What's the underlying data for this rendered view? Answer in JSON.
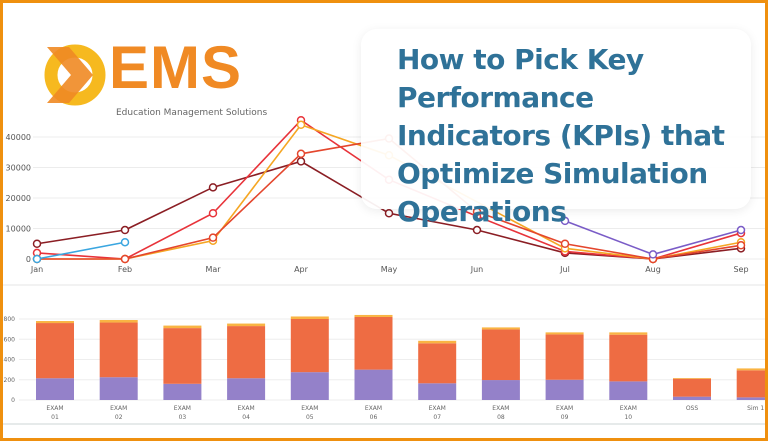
{
  "logo": {
    "name": "EMS",
    "tagline": "Education Management Solutions"
  },
  "title": "How to Pick Key Performance Indicators (KPIs) that Optimize Simulation Operations",
  "colors": {
    "frame": "#ef900f",
    "title": "#2f7298",
    "logo": "#f08a24"
  },
  "chart_data": [
    {
      "type": "line",
      "categories": [
        "Jan",
        "Feb",
        "Mar",
        "Apr",
        "May",
        "Jun",
        "Jul",
        "Aug",
        "Sep"
      ],
      "yticks": [
        0,
        10000,
        20000,
        30000,
        40000
      ],
      "ylim": [
        0,
        45000
      ],
      "grid": true,
      "series": [
        {
          "color": "#8b1e24",
          "values": [
            5000,
            9500,
            23500,
            32000,
            15000,
            9500,
            2000,
            0,
            3500
          ]
        },
        {
          "color": "#e8333a",
          "values": [
            2000,
            0,
            15000,
            45500,
            26000,
            14000,
            2500,
            0,
            8500
          ]
        },
        {
          "color": "#f5a623",
          "values": [
            0,
            0,
            6000,
            44000,
            34000,
            null,
            3500,
            0,
            5500
          ]
        },
        {
          "color": "#e4462d",
          "values": [
            0,
            0,
            7000,
            34500,
            39500,
            15500,
            5000,
            0,
            4500
          ]
        },
        {
          "color": "#3aa6e0",
          "values": [
            0,
            5500,
            null,
            null,
            null,
            null,
            null,
            null,
            null
          ]
        },
        {
          "color": "#7a5cc7",
          "values": [
            null,
            null,
            null,
            null,
            null,
            null,
            12500,
            1500,
            9500
          ]
        }
      ]
    },
    {
      "type": "bar",
      "stacked": true,
      "categories": [
        [
          "EXAM",
          "01"
        ],
        [
          "EXAM",
          "02"
        ],
        [
          "EXAM",
          "03"
        ],
        [
          "EXAM",
          "04"
        ],
        [
          "EXAM",
          "05"
        ],
        [
          "EXAM",
          "06"
        ],
        [
          "EXAM",
          "07"
        ],
        [
          "EXAM",
          "08"
        ],
        [
          "EXAM",
          "09"
        ],
        [
          "EXAM",
          "10"
        ],
        [
          "OSS",
          ""
        ],
        [
          "Sim 1",
          ""
        ]
      ],
      "yticks": [
        0,
        200,
        400,
        600,
        800
      ],
      "ylim": [
        0,
        850
      ],
      "grid": true,
      "series": [
        {
          "color": "#9481c9",
          "values": [
            215,
            225,
            160,
            215,
            275,
            300,
            165,
            197,
            200,
            184,
            33,
            26
          ]
        },
        {
          "color": "#ee6c43",
          "values": [
            545,
            540,
            550,
            515,
            525,
            520,
            395,
            500,
            448,
            461,
            177,
            267
          ]
        },
        {
          "color": "#f9b443",
          "values": [
            20,
            25,
            25,
            25,
            25,
            20,
            25,
            20,
            20,
            23,
            7,
            19
          ]
        }
      ]
    }
  ]
}
